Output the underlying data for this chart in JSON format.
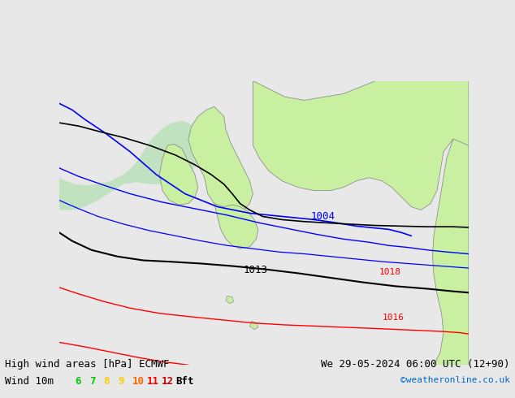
{
  "title_left": "High wind areas [hPa] ECMWF",
  "title_right": "We 29-05-2024 06:00 UTC (12+90)",
  "subtitle_left": "Wind 10m",
  "legend_values": [
    "6",
    "7",
    "8",
    "9",
    "10",
    "11",
    "12",
    "Bft"
  ],
  "legend_colors": [
    "#00cc00",
    "#00cc00",
    "#ffcc00",
    "#ffcc00",
    "#ff6600",
    "#ff0000",
    "#cc0000",
    "#000000"
  ],
  "copyright": "©weatheronline.co.uk",
  "background_color": "#e8e8e8",
  "land_color": "#c8f0a0",
  "border_color": "#808080",
  "isobar_blue_color": "#0000ff",
  "isobar_black_color": "#000000",
  "isobar_red_color": "#ff0000",
  "wind_fill_color": "#b0e0b0",
  "label_1004": "1004",
  "label_1013": "1013",
  "label_1016": "1016",
  "label_1018": "1018",
  "figsize": [
    6.34,
    4.9
  ],
  "dpi": 100
}
